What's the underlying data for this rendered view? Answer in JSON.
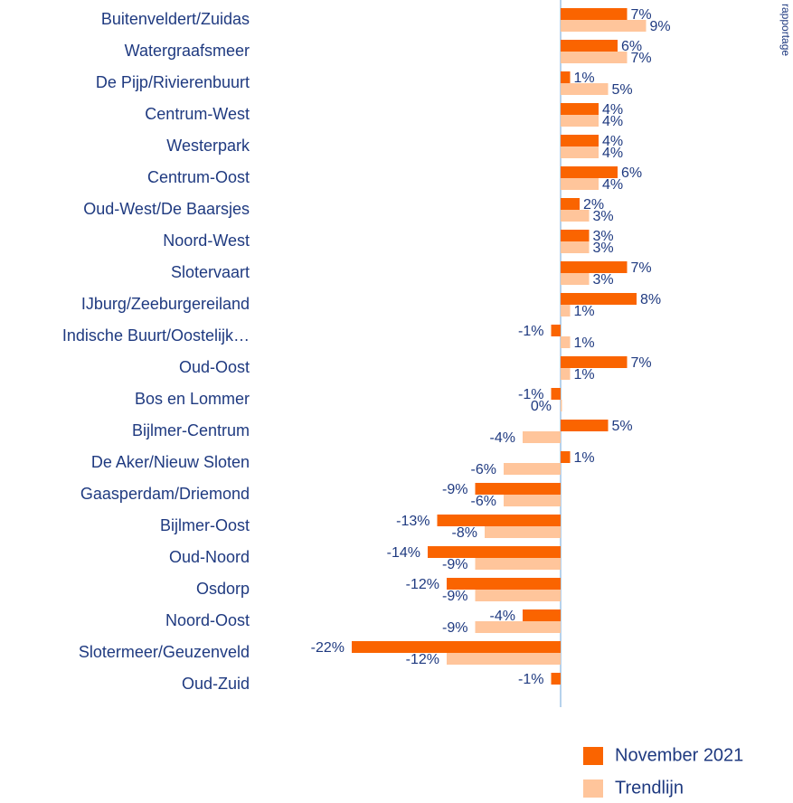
{
  "chart_data": {
    "type": "bar",
    "orientation": "horizontal",
    "note": "rapportage",
    "categories": [
      "Buitenveldert/Zuidas",
      "Watergraafsmeer",
      "De Pijp/Rivierenbuurt",
      "Centrum-West",
      "Westerpark",
      "Centrum-Oost",
      "Oud-West/De Baarsjes",
      "Noord-West",
      "Slotervaart",
      "IJburg/Zeeburgereiland",
      "Indische Buurt/Oostelijk…",
      "Oud-Oost",
      "Bos en Lommer",
      "Bijlmer-Centrum",
      "De Aker/Nieuw Sloten",
      "Gaasperdam/Driemond",
      "Bijlmer-Oost",
      "Oud-Noord",
      "Osdorp",
      "Noord-Oost",
      "Slotermeer/Geuzenveld",
      "Oud-Zuid"
    ],
    "series": [
      {
        "name": "November 2021",
        "color": "#fa6400",
        "values": [
          7,
          6,
          1,
          4,
          4,
          6,
          2,
          3,
          7,
          8,
          -1,
          7,
          -1,
          5,
          1,
          -9,
          -13,
          -14,
          -12,
          -4,
          -22,
          -1
        ],
        "value_labels": [
          "7%",
          "6%",
          "1%",
          "4%",
          "4%",
          "6%",
          "2%",
          "3%",
          "7%",
          "8%",
          "-1%",
          "7%",
          "-1%",
          "5%",
          "1%",
          "-9%",
          "-13%",
          "-14%",
          "-12%",
          "-4%",
          "-22%",
          "-1%"
        ]
      },
      {
        "name": "Trendlijn",
        "color": "#ffc59b",
        "values": [
          9,
          7,
          5,
          4,
          4,
          4,
          3,
          3,
          3,
          1,
          1,
          1,
          0,
          -4,
          -6,
          -6,
          -8,
          -9,
          -9,
          -9,
          -12,
          null
        ],
        "value_labels": [
          "9%",
          "7%",
          "5%",
          "4%",
          "4%",
          "4%",
          "3%",
          "3%",
          "3%",
          "1%",
          "1%",
          "1%",
          "0%",
          "-4%",
          "-6%",
          "-6%",
          "-8%",
          "-9%",
          "-9%",
          "-9%",
          "-12%",
          null
        ]
      }
    ]
  }
}
